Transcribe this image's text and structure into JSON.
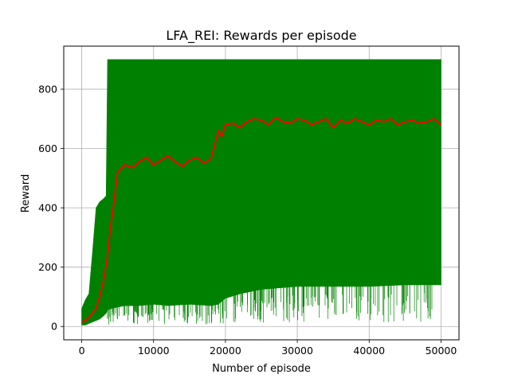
{
  "chart_data": {
    "type": "line",
    "title": "LFA_REI: Rewards per episode",
    "xlabel": "Number of episode",
    "ylabel": "Reward",
    "xlim": [
      -2500,
      52500
    ],
    "ylim": [
      -45,
      945
    ],
    "xticks": [
      0,
      10000,
      20000,
      30000,
      40000,
      50000
    ],
    "yticks": [
      0,
      200,
      400,
      600,
      800
    ],
    "grid": true,
    "legend": "none",
    "series": [
      {
        "kind": "band",
        "color": "#008000",
        "x": [
          0,
          500,
          1000,
          1500,
          2000,
          2500,
          3000,
          3400,
          3600,
          4000,
          5000,
          6000,
          8000,
          10000,
          12000,
          15000,
          18000,
          19000,
          20000,
          22000,
          25000,
          30000,
          35000,
          40000,
          45000,
          50000
        ],
        "upper": [
          60,
          90,
          110,
          250,
          400,
          420,
          430,
          440,
          900,
          900,
          900,
          900,
          900,
          900,
          900,
          900,
          900,
          900,
          900,
          900,
          900,
          900,
          900,
          900,
          900,
          900
        ],
        "lower": [
          5,
          5,
          10,
          15,
          20,
          25,
          35,
          45,
          55,
          60,
          65,
          70,
          70,
          75,
          70,
          75,
          70,
          75,
          95,
          110,
          125,
          135,
          135,
          135,
          140,
          140
        ]
      },
      {
        "kind": "line",
        "color": "#ff0000",
        "x": [
          0,
          500,
          1000,
          1500,
          2000,
          2500,
          3000,
          3500,
          4000,
          4500,
          5000,
          6000,
          7000,
          8000,
          9000,
          10000,
          11000,
          12000,
          13000,
          14000,
          15000,
          16000,
          17000,
          18000,
          18500,
          19000,
          19500,
          20000,
          21000,
          22000,
          23000,
          24000,
          25000,
          26000,
          27000,
          28000,
          29000,
          30000,
          31000,
          32000,
          33000,
          34000,
          35000,
          36000,
          37000,
          38000,
          39000,
          40000,
          41000,
          42000,
          43000,
          44000,
          45000,
          46000,
          47000,
          48000,
          49000,
          50000
        ],
        "y": [
          15,
          20,
          30,
          45,
          60,
          100,
          150,
          220,
          330,
          420,
          520,
          545,
          535,
          555,
          570,
          545,
          560,
          575,
          555,
          540,
          560,
          570,
          550,
          565,
          610,
          660,
          640,
          680,
          685,
          670,
          690,
          700,
          695,
          680,
          705,
          690,
          685,
          700,
          695,
          680,
          690,
          700,
          670,
          695,
          685,
          700,
          690,
          680,
          695,
          690,
          700,
          680,
          690,
          695,
          685,
          690,
          700,
          680
        ]
      }
    ]
  }
}
